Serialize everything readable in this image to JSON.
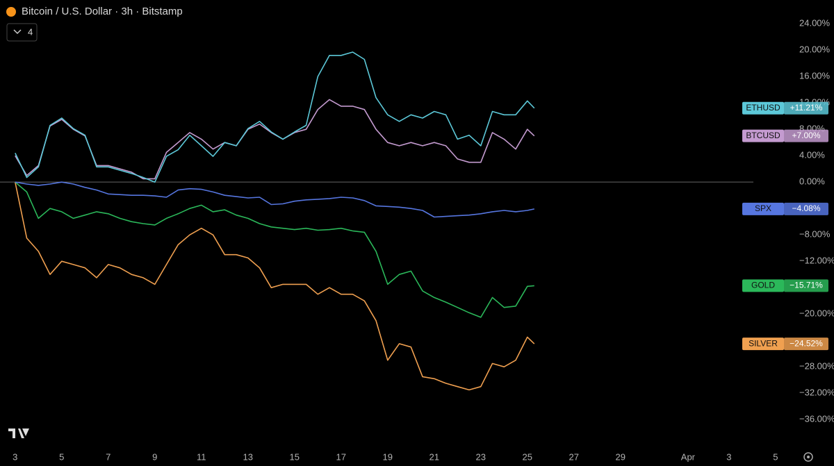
{
  "chart_data": {
    "type": "line",
    "title": "Bitcoin / U.S. Dollar · 3h · Bitstamp",
    "indicator_count": 4,
    "x": [
      0,
      0.5,
      1,
      1.5,
      2,
      2.5,
      3,
      3.5,
      4,
      4.5,
      5,
      5.5,
      6,
      6.5,
      7,
      7.5,
      8,
      8.5,
      9,
      9.5,
      10,
      10.5,
      11,
      11.5,
      12,
      12.5,
      13,
      13.5,
      14,
      14.5,
      15,
      15.5,
      16,
      16.5,
      17,
      17.5,
      18,
      18.5,
      19,
      19.5,
      20,
      20.5,
      21,
      21.5,
      22,
      22.3
    ],
    "xlim": [
      -0.65,
      33.5
    ],
    "xticks": [
      {
        "value": 0,
        "label": "3"
      },
      {
        "value": 2,
        "label": "5"
      },
      {
        "value": 4,
        "label": "7"
      },
      {
        "value": 6,
        "label": "9"
      },
      {
        "value": 8,
        "label": "11"
      },
      {
        "value": 10,
        "label": "13"
      },
      {
        "value": 12,
        "label": "15"
      },
      {
        "value": 14,
        "label": "17"
      },
      {
        "value": 16,
        "label": "19"
      },
      {
        "value": 18,
        "label": "21"
      },
      {
        "value": 20,
        "label": "23"
      },
      {
        "value": 22,
        "label": "25"
      },
      {
        "value": 24,
        "label": "27"
      },
      {
        "value": 26,
        "label": "29"
      },
      {
        "value": 28.9,
        "label": "Apr"
      },
      {
        "value": 30.66,
        "label": "3"
      },
      {
        "value": 32.66,
        "label": "5"
      }
    ],
    "ylim": [
      -40.3,
      27.6
    ],
    "yticks": [
      {
        "value": 24,
        "label": "24.00%"
      },
      {
        "value": 20,
        "label": "20.00%"
      },
      {
        "value": 16,
        "label": "16.00%"
      },
      {
        "value": 12,
        "label": "12.00%"
      },
      {
        "value": 8,
        "label": "8.00%"
      },
      {
        "value": 4,
        "label": "4.00%"
      },
      {
        "value": 0,
        "label": "0.00%"
      },
      {
        "value": -8,
        "label": "−8.00%"
      },
      {
        "value": -12,
        "label": "−12.00%"
      },
      {
        "value": -20,
        "label": "−20.00%"
      },
      {
        "value": -28,
        "label": "−28.00%"
      },
      {
        "value": -32,
        "label": "−32.00%"
      },
      {
        "value": -36,
        "label": "−36.00%"
      }
    ],
    "zero_line": true,
    "series": [
      {
        "name": "ETHUSD",
        "color": "#5cc8d8",
        "values": [
          4.4,
          0.7,
          2.3,
          8.6,
          9.7,
          8.1,
          7.1,
          2.3,
          2.3,
          1.8,
          1.3,
          0.7,
          0,
          3.9,
          4.9,
          7.1,
          5.5,
          3.9,
          6.0,
          5.5,
          8.1,
          9.2,
          7.6,
          6.5,
          7.6,
          8.6,
          16.0,
          19.2,
          19.2,
          19.7,
          18.6,
          12.8,
          10.2,
          9.2,
          10.2,
          9.7,
          10.7,
          10.2,
          6.5,
          7.1,
          5.5,
          10.7,
          10.2,
          10.2,
          12.3,
          11.21
        ],
        "value_labels": [
          null,
          null,
          null,
          null,
          null,
          null,
          null,
          null,
          null,
          null,
          null,
          null,
          null,
          null,
          null,
          null,
          null,
          null,
          null,
          null,
          null,
          null,
          null,
          null,
          null,
          null,
          null,
          null,
          null,
          null,
          null,
          null,
          null,
          null,
          null,
          null,
          null,
          null,
          null,
          null,
          null,
          null,
          null,
          null,
          null,
          "+11.21%"
        ]
      },
      {
        "name": "BTCUSD",
        "color": "#c49bd0",
        "values": [
          4.0,
          1.0,
          2.5,
          8.5,
          9.5,
          8.0,
          7.0,
          2.5,
          2.5,
          2.0,
          1.5,
          0.5,
          0.5,
          4.5,
          6.0,
          7.5,
          6.5,
          5.0,
          6.0,
          5.5,
          8.0,
          8.8,
          7.5,
          6.5,
          7.5,
          8.0,
          11.0,
          12.5,
          11.5,
          11.5,
          11.0,
          8.0,
          6.0,
          5.5,
          6.0,
          5.5,
          6.0,
          5.5,
          3.5,
          3.0,
          3.0,
          7.5,
          6.5,
          5.0,
          8.0,
          7.0
        ],
        "value_labels": [
          null,
          null,
          null,
          null,
          null,
          null,
          null,
          null,
          null,
          null,
          null,
          null,
          null,
          null,
          null,
          null,
          null,
          null,
          null,
          null,
          null,
          null,
          null,
          null,
          null,
          null,
          null,
          null,
          null,
          null,
          null,
          null,
          null,
          null,
          null,
          null,
          null,
          null,
          null,
          null,
          null,
          null,
          null,
          null,
          null,
          "+7.00%"
        ]
      },
      {
        "name": "SPX",
        "color": "#5676e0",
        "values": [
          0,
          -0.3,
          -0.5,
          -0.3,
          0,
          -0.3,
          -0.8,
          -1.2,
          -1.8,
          -1.9,
          -2.0,
          -2.0,
          -2.1,
          -2.3,
          -1.2,
          -1.0,
          -1.1,
          -1.5,
          -2.0,
          -2.2,
          -2.4,
          -2.3,
          -3.4,
          -3.3,
          -2.9,
          -2.7,
          -2.6,
          -2.5,
          -2.3,
          -2.4,
          -2.8,
          -3.6,
          -3.7,
          -3.8,
          -4.0,
          -4.3,
          -5.3,
          -5.2,
          -5.1,
          -5.0,
          -4.8,
          -4.5,
          -4.3,
          -4.5,
          -4.3,
          -4.08
        ],
        "value_labels": [
          null,
          null,
          null,
          null,
          null,
          null,
          null,
          null,
          null,
          null,
          null,
          null,
          null,
          null,
          null,
          null,
          null,
          null,
          null,
          null,
          null,
          null,
          null,
          null,
          null,
          null,
          null,
          null,
          null,
          null,
          null,
          null,
          null,
          null,
          null,
          null,
          null,
          null,
          null,
          null,
          null,
          null,
          null,
          null,
          null,
          "−4.08%"
        ]
      },
      {
        "name": "GOLD",
        "color": "#2bb85a",
        "values": [
          0,
          -1.5,
          -5.5,
          -4.0,
          -4.5,
          -5.5,
          -5.0,
          -4.5,
          -4.8,
          -5.5,
          -6.0,
          -6.3,
          -6.5,
          -5.5,
          -4.8,
          -4.0,
          -3.5,
          -4.5,
          -4.2,
          -5.0,
          -5.5,
          -6.3,
          -6.8,
          -7.0,
          -7.2,
          -7.0,
          -7.3,
          -7.2,
          -7.0,
          -7.4,
          -7.6,
          -10.5,
          -15.5,
          -14.0,
          -13.5,
          -16.5,
          -17.5,
          -18.2,
          -19.0,
          -19.8,
          -20.5,
          -17.5,
          -19.0,
          -18.8,
          -15.8,
          -15.71
        ],
        "value_labels": [
          null,
          null,
          null,
          null,
          null,
          null,
          null,
          null,
          null,
          null,
          null,
          null,
          null,
          null,
          null,
          null,
          null,
          null,
          null,
          null,
          null,
          null,
          null,
          null,
          null,
          null,
          null,
          null,
          null,
          null,
          null,
          null,
          null,
          null,
          null,
          null,
          null,
          null,
          null,
          null,
          null,
          null,
          null,
          null,
          null,
          "−15.71%"
        ]
      },
      {
        "name": "SILVER",
        "color": "#f0a050",
        "values": [
          0,
          -8.5,
          -10.5,
          -14.0,
          -12.0,
          -12.5,
          -13.0,
          -14.5,
          -12.5,
          -13.0,
          -14.0,
          -14.5,
          -15.5,
          -12.5,
          -9.5,
          -8.0,
          -7.0,
          -8.0,
          -11.0,
          -11.0,
          -11.5,
          -13.0,
          -16.0,
          -15.5,
          -15.5,
          -15.5,
          -17.0,
          -16.0,
          -17.0,
          -17.0,
          -18.0,
          -21.0,
          -27.0,
          -24.5,
          -25.0,
          -29.5,
          -29.8,
          -30.5,
          -31.0,
          -31.5,
          -31.0,
          -27.5,
          -28.0,
          -27.0,
          -23.5,
          -24.52
        ],
        "value_labels": [
          null,
          null,
          null,
          null,
          null,
          null,
          null,
          null,
          null,
          null,
          null,
          null,
          null,
          null,
          null,
          null,
          null,
          null,
          null,
          null,
          null,
          null,
          null,
          null,
          null,
          null,
          null,
          null,
          null,
          null,
          null,
          null,
          null,
          null,
          null,
          null,
          null,
          null,
          null,
          null,
          null,
          null,
          null,
          null,
          null,
          "−24.52%"
        ]
      }
    ]
  }
}
